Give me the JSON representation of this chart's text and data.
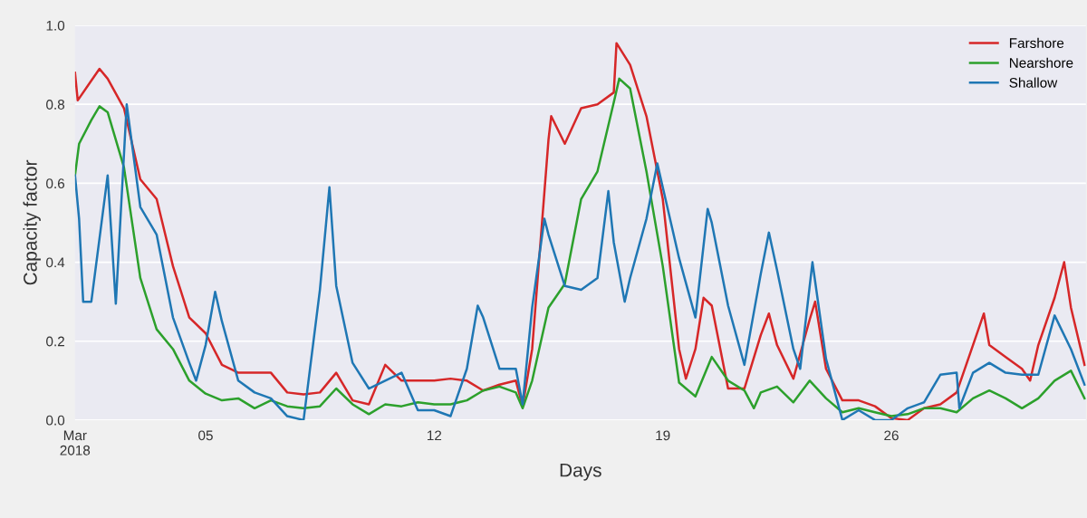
{
  "chart_data": {
    "type": "line",
    "xlabel": "Days",
    "ylabel": "Capacity factor",
    "xlim": [
      "2018-03-01T00:00",
      "2018-03-31T23:00"
    ],
    "xticks": [
      {
        "value": "2018-03-01",
        "label": "Mar\n2018"
      },
      {
        "value": "2018-03-05",
        "label": "05"
      },
      {
        "value": "2018-03-12",
        "label": "12"
      },
      {
        "value": "2018-03-19",
        "label": "19"
      },
      {
        "value": "2018-03-26",
        "label": "26"
      }
    ],
    "ylim": [
      0,
      1
    ],
    "yticks": [
      {
        "value": 0,
        "label": "0.0"
      },
      {
        "value": 0.2,
        "label": "0.2"
      },
      {
        "value": 0.4,
        "label": "0.4"
      },
      {
        "value": 0.6,
        "label": "0.6"
      },
      {
        "value": 0.8,
        "label": "0.8"
      },
      {
        "value": 1,
        "label": "1.0"
      }
    ],
    "grid": "y",
    "legend": "top right",
    "marker": "none",
    "line_style": "solid",
    "series": [
      {
        "name": "Farshore",
        "color": "#d62728",
        "x": [
          "2018-03-01T00:00",
          "2018-03-01T02:00",
          "2018-03-01T12:00",
          "2018-03-01T18:00",
          "2018-03-02T00:00",
          "2018-03-02T12:00",
          "2018-03-03T00:00",
          "2018-03-03T12:00",
          "2018-03-04T00:00",
          "2018-03-04T12:00",
          "2018-03-05T00:00",
          "2018-03-05T12:00",
          "2018-03-06T00:00",
          "2018-03-06T12:00",
          "2018-03-07T00:00",
          "2018-03-07T12:00",
          "2018-03-08T00:00",
          "2018-03-08T12:00",
          "2018-03-09T00:00",
          "2018-03-09T12:00",
          "2018-03-10T00:00",
          "2018-03-10T12:00",
          "2018-03-11T00:00",
          "2018-03-11T12:00",
          "2018-03-12T00:00",
          "2018-03-12T12:00",
          "2018-03-13T00:00",
          "2018-03-13T12:00",
          "2018-03-14T00:00",
          "2018-03-14T12:00",
          "2018-03-14T17:00",
          "2018-03-15T00:00",
          "2018-03-15T12:00",
          "2018-03-15T14:00",
          "2018-03-16T00:00",
          "2018-03-16T12:00",
          "2018-03-17T00:00",
          "2018-03-17T12:00",
          "2018-03-17T14:00",
          "2018-03-18T00:00",
          "2018-03-18T12:00",
          "2018-03-19T00:00",
          "2018-03-19T12:00",
          "2018-03-19T17:00",
          "2018-03-20T00:00",
          "2018-03-20T06:00",
          "2018-03-20T12:00",
          "2018-03-21T00:00",
          "2018-03-21T12:00",
          "2018-03-22T00:00",
          "2018-03-22T06:00",
          "2018-03-22T12:00",
          "2018-03-23T00:00",
          "2018-03-23T12:00",
          "2018-03-23T16:00",
          "2018-03-24T00:00",
          "2018-03-24T12:00",
          "2018-03-25T00:00",
          "2018-03-25T12:00",
          "2018-03-26T00:00",
          "2018-03-26T12:00",
          "2018-03-27T00:00",
          "2018-03-27T12:00",
          "2018-03-28T00:00",
          "2018-03-28T12:00",
          "2018-03-28T20:00",
          "2018-03-29T00:00",
          "2018-03-29T12:00",
          "2018-03-30T00:00",
          "2018-03-30T06:00",
          "2018-03-30T12:00",
          "2018-03-31T00:00",
          "2018-03-31T07:00",
          "2018-03-31T12:00",
          "2018-03-31T22:00"
        ],
        "values": [
          0.88,
          0.81,
          0.86,
          0.89,
          0.865,
          0.79,
          0.61,
          0.56,
          0.39,
          0.26,
          0.22,
          0.14,
          0.12,
          0.12,
          0.12,
          0.07,
          0.065,
          0.07,
          0.12,
          0.05,
          0.04,
          0.14,
          0.1,
          0.1,
          0.1,
          0.105,
          0.1,
          0.075,
          0.09,
          0.1,
          0.035,
          0.18,
          0.71,
          0.77,
          0.7,
          0.79,
          0.8,
          0.83,
          0.955,
          0.9,
          0.77,
          0.56,
          0.18,
          0.105,
          0.18,
          0.31,
          0.29,
          0.08,
          0.08,
          0.215,
          0.27,
          0.19,
          0.105,
          0.255,
          0.3,
          0.13,
          0.05,
          0.05,
          0.035,
          0.005,
          0.0,
          0.03,
          0.04,
          0.07,
          0.19,
          0.27,
          0.19,
          0.16,
          0.13,
          0.1,
          0.19,
          0.31,
          0.4,
          0.285,
          0.14
        ]
      },
      {
        "name": "Nearshore",
        "color": "#2ca02c",
        "x": [
          "2018-03-01T00:00",
          "2018-03-01T03:00",
          "2018-03-01T12:00",
          "2018-03-01T18:00",
          "2018-03-02T00:00",
          "2018-03-02T12:00",
          "2018-03-03T00:00",
          "2018-03-03T12:00",
          "2018-03-04T00:00",
          "2018-03-04T12:00",
          "2018-03-05T00:00",
          "2018-03-05T12:00",
          "2018-03-06T00:00",
          "2018-03-06T12:00",
          "2018-03-07T00:00",
          "2018-03-07T12:00",
          "2018-03-08T00:00",
          "2018-03-08T12:00",
          "2018-03-09T00:00",
          "2018-03-09T12:00",
          "2018-03-10T00:00",
          "2018-03-10T12:00",
          "2018-03-11T00:00",
          "2018-03-11T12:00",
          "2018-03-12T00:00",
          "2018-03-12T12:00",
          "2018-03-13T00:00",
          "2018-03-13T12:00",
          "2018-03-14T00:00",
          "2018-03-14T12:00",
          "2018-03-14T17:00",
          "2018-03-15T00:00",
          "2018-03-15T12:00",
          "2018-03-16T00:00",
          "2018-03-16T12:00",
          "2018-03-17T00:00",
          "2018-03-17T12:00",
          "2018-03-17T16:00",
          "2018-03-18T00:00",
          "2018-03-18T12:00",
          "2018-03-19T00:00",
          "2018-03-19T12:00",
          "2018-03-20T00:00",
          "2018-03-20T12:00",
          "2018-03-21T00:00",
          "2018-03-21T12:00",
          "2018-03-21T19:00",
          "2018-03-22T00:00",
          "2018-03-22T12:00",
          "2018-03-23T00:00",
          "2018-03-23T12:00",
          "2018-03-24T00:00",
          "2018-03-24T12:00",
          "2018-03-25T00:00",
          "2018-03-25T12:00",
          "2018-03-26T00:00",
          "2018-03-26T12:00",
          "2018-03-27T00:00",
          "2018-03-27T12:00",
          "2018-03-28T00:00",
          "2018-03-28T12:00",
          "2018-03-29T00:00",
          "2018-03-29T12:00",
          "2018-03-30T00:00",
          "2018-03-30T12:00",
          "2018-03-31T00:00",
          "2018-03-31T12:00",
          "2018-03-31T22:00"
        ],
        "values": [
          0.62,
          0.7,
          0.76,
          0.795,
          0.78,
          0.64,
          0.36,
          0.23,
          0.18,
          0.1,
          0.067,
          0.05,
          0.055,
          0.03,
          0.05,
          0.035,
          0.03,
          0.035,
          0.08,
          0.04,
          0.015,
          0.04,
          0.035,
          0.045,
          0.04,
          0.04,
          0.05,
          0.075,
          0.085,
          0.07,
          0.03,
          0.1,
          0.285,
          0.345,
          0.56,
          0.63,
          0.805,
          0.865,
          0.84,
          0.63,
          0.39,
          0.095,
          0.06,
          0.16,
          0.1,
          0.075,
          0.03,
          0.07,
          0.085,
          0.045,
          0.1,
          0.055,
          0.02,
          0.03,
          0.02,
          0.01,
          0.015,
          0.03,
          0.03,
          0.02,
          0.055,
          0.075,
          0.055,
          0.03,
          0.055,
          0.1,
          0.125,
          0.055
        ]
      },
      {
        "name": "Shallow",
        "color": "#1f77b4",
        "x": [
          "2018-03-01T00:00",
          "2018-03-01T03:00",
          "2018-03-01T06:00",
          "2018-03-01T12:00",
          "2018-03-02T00:00",
          "2018-03-02T06:00",
          "2018-03-02T14:00",
          "2018-03-03T00:00",
          "2018-03-03T12:00",
          "2018-03-04T00:00",
          "2018-03-04T12:00",
          "2018-03-04T17:00",
          "2018-03-05T00:00",
          "2018-03-05T07:00",
          "2018-03-05T12:00",
          "2018-03-06T00:00",
          "2018-03-06T12:00",
          "2018-03-07T00:00",
          "2018-03-07T12:00",
          "2018-03-08T00:00",
          "2018-03-08T12:00",
          "2018-03-08T19:00",
          "2018-03-09T00:00",
          "2018-03-09T12:00",
          "2018-03-10T00:00",
          "2018-03-10T12:00",
          "2018-03-11T00:00",
          "2018-03-11T12:00",
          "2018-03-12T00:00",
          "2018-03-12T12:00",
          "2018-03-13T00:00",
          "2018-03-13T08:00",
          "2018-03-13T12:00",
          "2018-03-14T00:00",
          "2018-03-14T12:00",
          "2018-03-14T17:00",
          "2018-03-15T00:00",
          "2018-03-15T09:00",
          "2018-03-15T12:00",
          "2018-03-16T00:00",
          "2018-03-16T12:00",
          "2018-03-17T00:00",
          "2018-03-17T08:00",
          "2018-03-17T12:00",
          "2018-03-17T20:00",
          "2018-03-18T00:00",
          "2018-03-18T12:00",
          "2018-03-18T20:00",
          "2018-03-19T00:00",
          "2018-03-19T12:00",
          "2018-03-20T00:00",
          "2018-03-20T09:00",
          "2018-03-20T12:00",
          "2018-03-21T00:00",
          "2018-03-21T12:00",
          "2018-03-22T00:00",
          "2018-03-22T06:00",
          "2018-03-22T12:00",
          "2018-03-23T00:00",
          "2018-03-23T05:00",
          "2018-03-23T14:00",
          "2018-03-24T00:00",
          "2018-03-24T12:00",
          "2018-03-25T00:00",
          "2018-03-25T12:00",
          "2018-03-26T00:00",
          "2018-03-26T12:00",
          "2018-03-27T00:00",
          "2018-03-27T12:00",
          "2018-03-28T00:00",
          "2018-03-28T02:00",
          "2018-03-28T12:00",
          "2018-03-29T00:00",
          "2018-03-29T12:00",
          "2018-03-30T00:00",
          "2018-03-30T12:00",
          "2018-03-31T00:00",
          "2018-03-31T12:00",
          "2018-03-31T22:00"
        ],
        "values": [
          0.62,
          0.51,
          0.3,
          0.3,
          0.62,
          0.295,
          0.8,
          0.54,
          0.47,
          0.26,
          0.145,
          0.1,
          0.19,
          0.325,
          0.25,
          0.1,
          0.07,
          0.055,
          0.01,
          0.0,
          0.33,
          0.59,
          0.34,
          0.145,
          0.08,
          0.1,
          0.12,
          0.025,
          0.025,
          0.01,
          0.13,
          0.29,
          0.26,
          0.13,
          0.13,
          0.04,
          0.285,
          0.51,
          0.47,
          0.34,
          0.33,
          0.36,
          0.58,
          0.45,
          0.3,
          0.36,
          0.51,
          0.65,
          0.59,
          0.41,
          0.26,
          0.535,
          0.5,
          0.29,
          0.14,
          0.37,
          0.475,
          0.38,
          0.18,
          0.13,
          0.4,
          0.155,
          0.0,
          0.025,
          0.0,
          0.0,
          0.03,
          0.045,
          0.115,
          0.12,
          0.03,
          0.12,
          0.145,
          0.12,
          0.115,
          0.115,
          0.265,
          0.18,
          0.09
        ]
      }
    ]
  }
}
